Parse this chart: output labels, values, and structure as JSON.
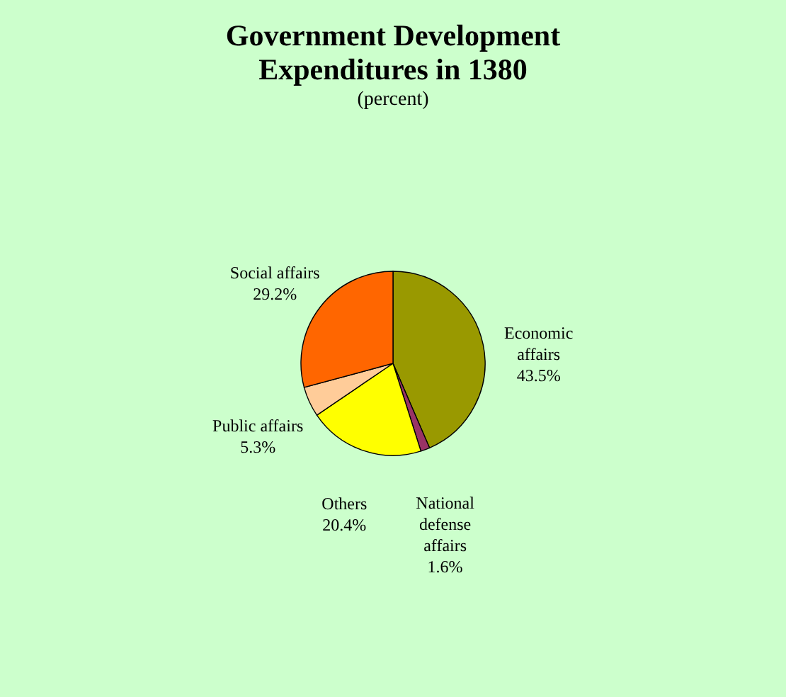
{
  "chart_data": {
    "type": "pie",
    "title": "Government Development Expenditures in 1380",
    "subtitle": "(percent)",
    "categories": [
      "Economic affairs",
      "National defense affairs",
      "Others",
      "Public affairs",
      "Social affairs"
    ],
    "values": [
      43.5,
      1.6,
      20.4,
      5.3,
      29.2
    ],
    "value_labels": [
      "43.5%",
      "1.6%",
      "20.4%",
      "5.3%",
      "29.2%"
    ],
    "colors": [
      "#999900",
      "#993366",
      "#ffff00",
      "#ffcc99",
      "#ff6600"
    ],
    "legend": false
  }
}
